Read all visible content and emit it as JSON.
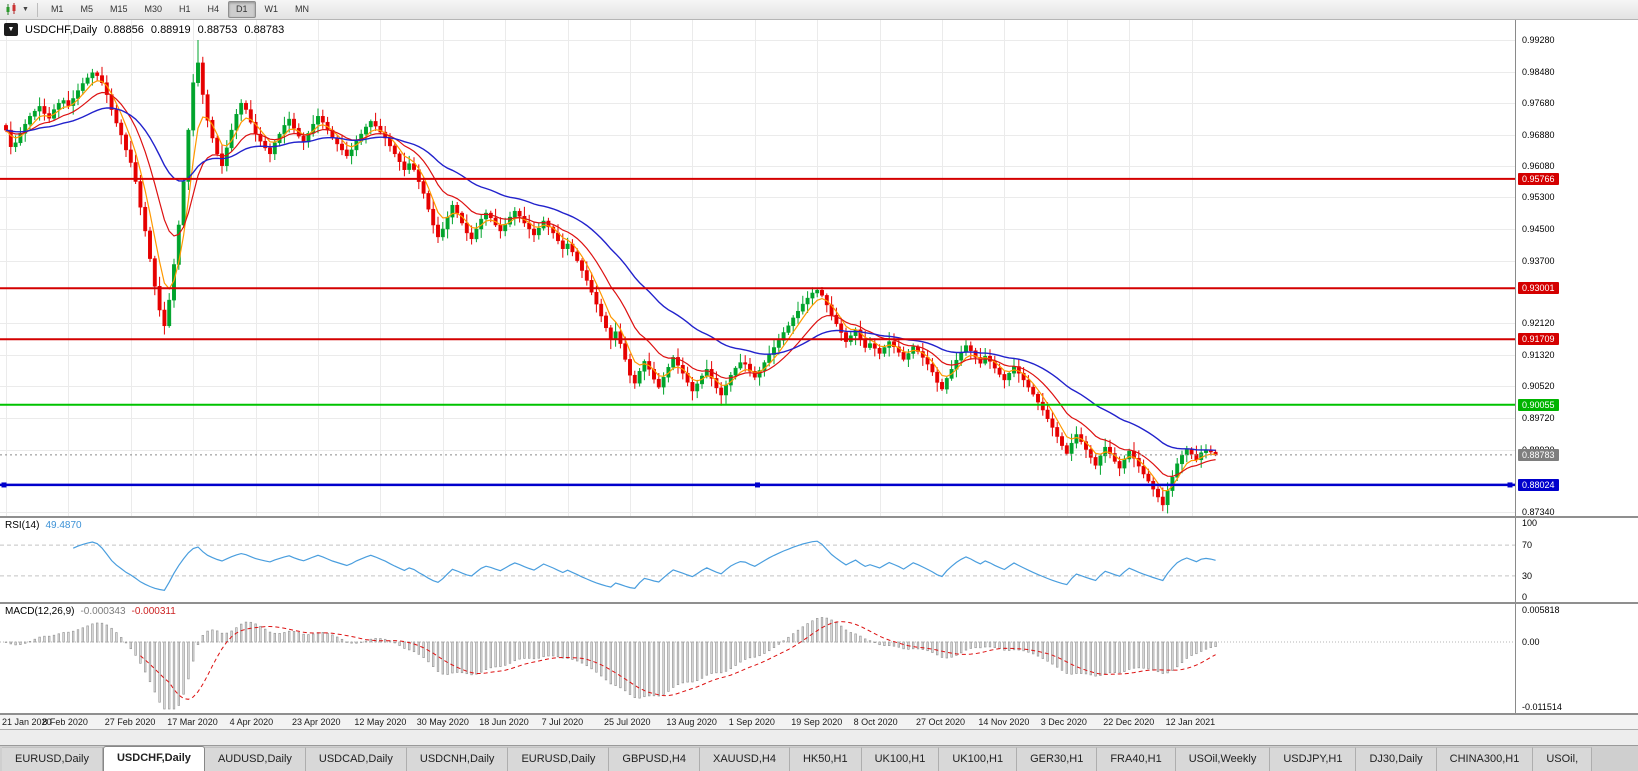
{
  "icons": {
    "chart_menu": "▼",
    "toolbar_caret": "▼"
  },
  "toolbar": {
    "timeframes": [
      "M1",
      "M5",
      "M15",
      "M30",
      "H1",
      "H4",
      "D1",
      "W1",
      "MN"
    ],
    "selected_timeframe": "D1"
  },
  "chart": {
    "title": "USDCHF,Daily",
    "ohlc": {
      "open": "0.88856",
      "high": "0.88919",
      "low": "0.88753",
      "close": "0.88783"
    }
  },
  "price_axis": {
    "labels": [
      "0.99280",
      "0.98480",
      "0.97680",
      "0.96880",
      "0.96080",
      "0.95300",
      "0.94500",
      "0.93700",
      "0.92120",
      "0.91320",
      "0.90520",
      "0.89720",
      "0.88920",
      "0.87340"
    ],
    "badges": [
      {
        "text": "0.95766",
        "price": 0.95766,
        "color": "#d40000"
      },
      {
        "text": "0.93001",
        "price": 0.93001,
        "color": "#d40000"
      },
      {
        "text": "0.91709",
        "price": 0.91709,
        "color": "#d40000"
      },
      {
        "text": "0.90055",
        "price": 0.90055,
        "color": "#00b400"
      },
      {
        "text": "0.88783",
        "price": 0.88783,
        "color": "#7e7e7e"
      },
      {
        "text": "0.88024",
        "price": 0.88024,
        "color": "#0000cc"
      }
    ]
  },
  "rsi_panel": {
    "label": "RSI(14)",
    "value": "49.4870"
  },
  "macd_panel": {
    "label": "MACD(12,26,9)",
    "value1": "-0.000343",
    "value2": "-0.000311"
  },
  "chart_data": {
    "type": "candlestick",
    "symbol": "USDCHF",
    "timeframe": "Daily",
    "title": "USDCHF,Daily 0.88856 0.88919 0.88753 0.88783",
    "ylim": [
      0.8734,
      0.9928
    ],
    "x_labels": [
      "21 Jan 2020",
      "8 Feb 2020",
      "27 Feb 2020",
      "17 Mar 2020",
      "4 Apr 2020",
      "23 Apr 2020",
      "12 May 2020",
      "30 May 2020",
      "18 Jun 2020",
      "7 Jul 2020",
      "25 Jul 2020",
      "13 Aug 2020",
      "1 Sep 2020",
      "19 Sep 2020",
      "8 Oct 2020",
      "27 Oct 2020",
      "14 Nov 2020",
      "3 Dec 2020",
      "22 Dec 2020",
      "12 Jan 2021"
    ],
    "candles_per_label": 13,
    "first_open": 0.9712,
    "closes": [
      0.97,
      0.9658,
      0.9668,
      0.9692,
      0.9715,
      0.9735,
      0.9748,
      0.976,
      0.9742,
      0.973,
      0.9752,
      0.9768,
      0.9775,
      0.9762,
      0.978,
      0.98,
      0.9818,
      0.9832,
      0.9845,
      0.9838,
      0.982,
      0.979,
      0.9752,
      0.9718,
      0.9688,
      0.965,
      0.9618,
      0.957,
      0.9505,
      0.9445,
      0.9375,
      0.9305,
      0.9245,
      0.9205,
      0.927,
      0.936,
      0.946,
      0.957,
      0.97,
      0.982,
      0.987,
      0.979,
      0.9725,
      0.968,
      0.964,
      0.961,
      0.9655,
      0.97,
      0.974,
      0.9768,
      0.9752,
      0.972,
      0.969,
      0.9672,
      0.9655,
      0.964,
      0.9668,
      0.969,
      0.9712,
      0.9728,
      0.9705,
      0.9685,
      0.967,
      0.9692,
      0.9715,
      0.9735,
      0.972,
      0.97,
      0.968,
      0.9665,
      0.965,
      0.9635,
      0.965,
      0.9672,
      0.969,
      0.9708,
      0.9722,
      0.971,
      0.9695,
      0.968,
      0.966,
      0.964,
      0.962,
      0.96,
      0.9615,
      0.96,
      0.957,
      0.954,
      0.95,
      0.946,
      0.943,
      0.945,
      0.948,
      0.951,
      0.949,
      0.9465,
      0.944,
      0.9425,
      0.945,
      0.9475,
      0.949,
      0.9478,
      0.946,
      0.9445,
      0.9462,
      0.948,
      0.9495,
      0.9482,
      0.9465,
      0.945,
      0.9435,
      0.9452,
      0.947,
      0.9455,
      0.944,
      0.942,
      0.94,
      0.9412,
      0.9392,
      0.937,
      0.9345,
      0.932,
      0.929,
      0.926,
      0.923,
      0.92,
      0.917,
      0.919,
      0.916,
      0.912,
      0.908,
      0.906,
      0.909,
      0.9115,
      0.9095,
      0.907,
      0.905,
      0.9075,
      0.91,
      0.9125,
      0.9105,
      0.9085,
      0.9062,
      0.904,
      0.9058,
      0.9078,
      0.9095,
      0.9072,
      0.9048,
      0.903,
      0.9055,
      0.908,
      0.9098,
      0.9112,
      0.9108,
      0.909,
      0.9075,
      0.9092,
      0.9112,
      0.9132,
      0.915,
      0.9168,
      0.9188,
      0.9205,
      0.9225,
      0.9242,
      0.926,
      0.9275,
      0.9288,
      0.9295,
      0.9282,
      0.9258,
      0.9232,
      0.921,
      0.9188,
      0.9165,
      0.918,
      0.9195,
      0.9172,
      0.915,
      0.916,
      0.9148,
      0.9135,
      0.915,
      0.9165,
      0.9152,
      0.9138,
      0.912,
      0.9135,
      0.9152,
      0.914,
      0.9125,
      0.9108,
      0.9088,
      0.9062,
      0.9045,
      0.9072,
      0.9095,
      0.9118,
      0.9138,
      0.9155,
      0.9142,
      0.9125,
      0.911,
      0.9128,
      0.9115,
      0.9098,
      0.9082,
      0.9068,
      0.9085,
      0.9102,
      0.9085,
      0.9068,
      0.905,
      0.9032,
      0.9012,
      0.8992,
      0.897,
      0.8948,
      0.8925,
      0.8902,
      0.8882,
      0.8908,
      0.893,
      0.8912,
      0.8892,
      0.8872,
      0.8852,
      0.8876,
      0.8898,
      0.8882,
      0.8862,
      0.8845,
      0.8868,
      0.8888,
      0.887,
      0.885,
      0.883,
      0.8812,
      0.8792,
      0.8772,
      0.8752,
      0.8788,
      0.8822,
      0.8856,
      0.8878,
      0.8893,
      0.888,
      0.8866,
      0.8884,
      0.889,
      0.88856,
      0.88783
    ],
    "wick_overrides": {
      "18": {
        "h": 0.9855
      },
      "33": {
        "l": 0.9183
      },
      "40": {
        "h": 0.9928
      },
      "149": {
        "l": 0.9003
      },
      "169": {
        "h": 0.9301
      },
      "195": {
        "l": 0.904
      },
      "241": {
        "l": 0.8736
      },
      "252": {
        "h": 0.88919,
        "l": 0.88753
      }
    },
    "up_color": "#00a42c",
    "down_color": "#e60000",
    "moving_averages": [
      {
        "period": 5,
        "method": "ema",
        "color": "#ff9900",
        "width": 1.2
      },
      {
        "period": 13,
        "method": "ema",
        "color": "#dd1111",
        "width": 1.2
      },
      {
        "period": 34,
        "method": "ema",
        "color": "#2222cc",
        "width": 1.4
      }
    ],
    "hlines": [
      {
        "price": 0.95766,
        "color": "#d40000",
        "width": 2,
        "selected": false
      },
      {
        "price": 0.93001,
        "color": "#d40000",
        "width": 2,
        "selected": false
      },
      {
        "price": 0.91709,
        "color": "#d40000",
        "width": 2,
        "selected": false
      },
      {
        "price": 0.90055,
        "color": "#00c300",
        "width": 2,
        "selected": false
      },
      {
        "price": 0.88024,
        "color": "#0000cc",
        "width": 2.5,
        "selected": true
      }
    ],
    "current_price": 0.88783,
    "indicators": [
      {
        "name": "RSI",
        "params": "14",
        "value": 49.487,
        "levels": [
          100,
          70,
          30,
          0
        ],
        "line_color": "#4a9ede",
        "range": [
          0,
          100
        ]
      },
      {
        "name": "MACD",
        "params": "12,26,9",
        "values": [
          -0.000343,
          -0.000311
        ],
        "axis_labels": [
          "0.005818",
          "0.00",
          "-0.011514"
        ],
        "range": [
          -0.0118,
          0.006
        ],
        "hist_fill": "#e2e2e2",
        "hist_stroke": "#979797",
        "signal_color": "#dd1111"
      }
    ]
  },
  "tabs": [
    {
      "label": "EURUSD,Daily",
      "active": false
    },
    {
      "label": "USDCHF,Daily",
      "active": true
    },
    {
      "label": "AUDUSD,Daily",
      "active": false
    },
    {
      "label": "USDCAD,Daily",
      "active": false
    },
    {
      "label": "USDCNH,Daily",
      "active": false
    },
    {
      "label": "EURUSD,Daily",
      "active": false
    },
    {
      "label": "GBPUSD,H4",
      "active": false
    },
    {
      "label": "XAUUSD,H4",
      "active": false
    },
    {
      "label": "HK50,H1",
      "active": false
    },
    {
      "label": "UK100,H1",
      "active": false
    },
    {
      "label": "UK100,H1",
      "active": false
    },
    {
      "label": "GER30,H1",
      "active": false
    },
    {
      "label": "FRA40,H1",
      "active": false
    },
    {
      "label": "USOil,Weekly",
      "active": false
    },
    {
      "label": "USDJPY,H1",
      "active": false
    },
    {
      "label": "DJ30,Daily",
      "active": false
    },
    {
      "label": "CHINA300,H1",
      "active": false
    },
    {
      "label": "USOil,",
      "active": false
    }
  ]
}
